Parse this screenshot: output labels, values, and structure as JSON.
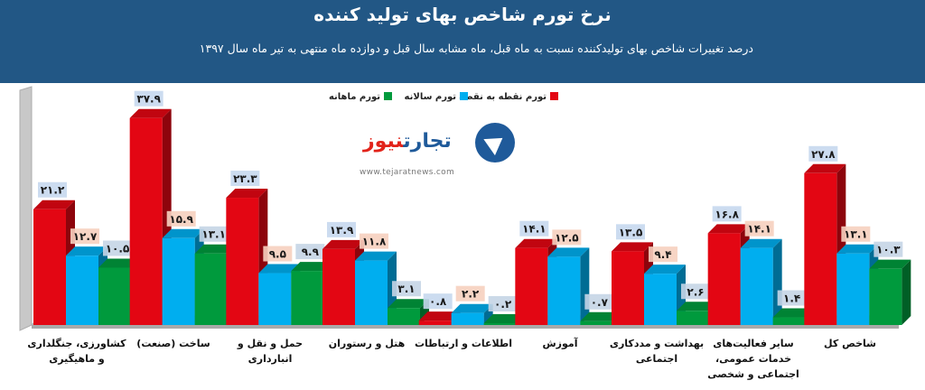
{
  "header": {
    "title": "نرخ تورم شاخص بهای تولید کننده",
    "subtitle": "درصد تغییرات شاخص بهای تولیدکننده نسبت به ماه قبل، ماه مشابه سال قبل و دوازده ماه منتهی به تیر ماه سال ۱۳۹۷",
    "background": "#225785"
  },
  "logo": {
    "name_part1": "تجارت",
    "name_part2": "نیوز",
    "url": "www.tejaratnews.com"
  },
  "chart_data": {
    "type": "bar",
    "categories": [
      "کشاورزی، جنگلداری\nو ماهیگیری",
      "ساخت (صنعت)",
      "حمل و نقل و\nانبارداری",
      "هتل و رستوران",
      "اطلاعات و ارتباطات",
      "آموزش",
      "بهداشت و مددکاری\nاجتماعی",
      "سایر فعالیت‌های\nخدمات عمومی،\nاجتماعی و شخصی",
      "شاخص کل"
    ],
    "series": [
      {
        "name": "تورم نقطه به نقطه",
        "color": "#e30613",
        "values": [
          21.2,
          37.9,
          23.3,
          13.9,
          0.8,
          14.1,
          13.5,
          16.8,
          27.8
        ],
        "labels": [
          "۲۱.۲",
          "۳۷.۹",
          "۲۳.۳",
          "۱۳.۹",
          "۰.۸",
          "۱۴.۱",
          "۱۳.۵",
          "۱۶.۸",
          "۲۷.۸"
        ]
      },
      {
        "name": "تورم سالانه",
        "color": "#00aeef",
        "values": [
          12.7,
          15.9,
          9.5,
          11.8,
          2.2,
          12.5,
          9.4,
          14.1,
          13.1
        ],
        "labels": [
          "۱۲.۷",
          "۱۵.۹",
          "۹.۵",
          "۱۱.۸",
          "۲.۲",
          "۱۲.۵",
          "۹.۴",
          "۱۴.۱",
          "۱۳.۱"
        ]
      },
      {
        "name": "تورم ماهانه",
        "color": "#009a3d",
        "values": [
          10.5,
          13.1,
          9.9,
          3.1,
          0.2,
          0.7,
          2.6,
          1.4,
          10.3
        ],
        "labels": [
          "۱۰.۵",
          "۱۳.۱",
          "۹.۹",
          "۳.۱",
          "۰.۲",
          "۰.۷",
          "۲.۶",
          "۱.۴",
          "۱۰.۳"
        ]
      }
    ],
    "ylim": [
      0,
      40
    ],
    "grid": false,
    "legend_position": "top-left",
    "title": "",
    "xlabel": "",
    "ylabel": ""
  }
}
